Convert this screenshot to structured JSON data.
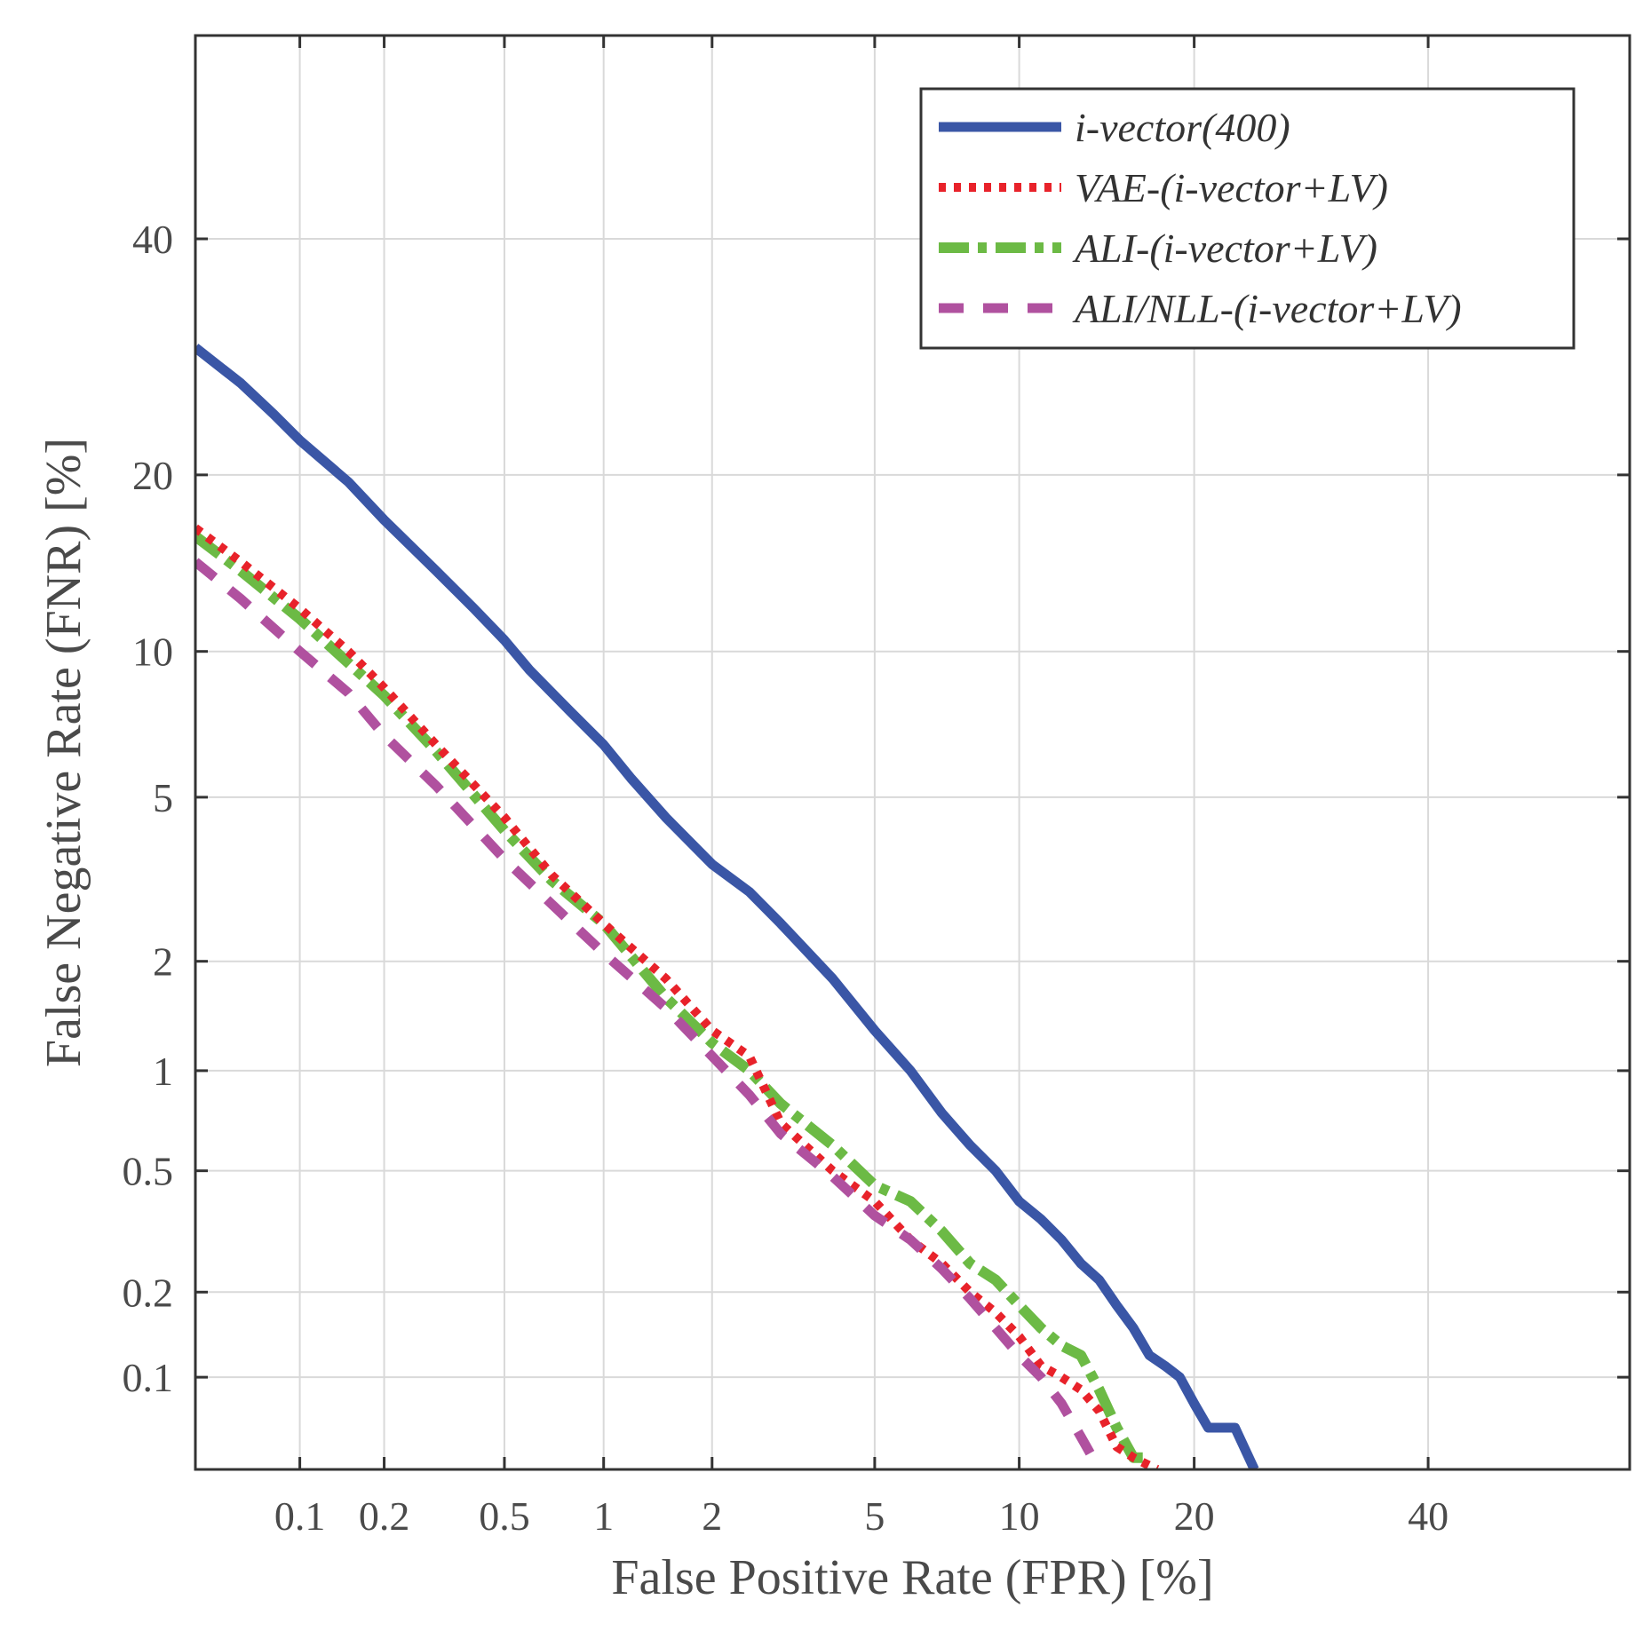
{
  "chart_data": {
    "type": "line",
    "title": "",
    "xlabel": "False Positive Rate (FPR) [%]",
    "ylabel": "False Negative Rate (FNR) [%]",
    "xscale": "probit",
    "yscale": "probit",
    "xlim": [
      0.04,
      60
    ],
    "ylim": [
      0.045,
      60
    ],
    "xticks": [
      0.1,
      0.2,
      0.5,
      1,
      2,
      5,
      10,
      20,
      40
    ],
    "xtick_labels": [
      "0.1",
      "0.2",
      "0.5",
      "1",
      "2",
      "5",
      "10",
      "20",
      "40"
    ],
    "yticks": [
      0.1,
      0.2,
      0.5,
      1,
      2,
      5,
      10,
      20,
      40
    ],
    "ytick_labels": [
      "0.1",
      "0.2",
      "0.5",
      "1",
      "2",
      "5",
      "10",
      "20",
      "40"
    ],
    "grid": true,
    "legend_position": "top-right",
    "series": [
      {
        "name": "i-vector(400)",
        "color": "#3a56a6",
        "style": "solid",
        "x": [
          0.04,
          0.06,
          0.08,
          0.1,
          0.15,
          0.2,
          0.3,
          0.4,
          0.5,
          0.6,
          0.8,
          1,
          1.2,
          1.5,
          2,
          2.5,
          3,
          4,
          5,
          6,
          7,
          8,
          9,
          10,
          11,
          12,
          13,
          14,
          15,
          16,
          17,
          18,
          19,
          20,
          21,
          22,
          23,
          24.5
        ],
        "y": [
          30,
          27,
          24.5,
          22.5,
          19.5,
          17,
          14,
          12,
          10.5,
          9.2,
          7.6,
          6.5,
          5.5,
          4.5,
          3.5,
          3,
          2.5,
          1.8,
          1.3,
          1.0,
          0.75,
          0.6,
          0.5,
          0.4,
          0.35,
          0.3,
          0.25,
          0.22,
          0.18,
          0.15,
          0.12,
          0.11,
          0.1,
          0.08,
          0.065,
          0.065,
          0.065,
          0.045
        ]
      },
      {
        "name": "VAE-(i-vector+LV)",
        "color": "#e8222a",
        "style": "dotted",
        "x": [
          0.04,
          0.06,
          0.1,
          0.15,
          0.2,
          0.3,
          0.5,
          0.7,
          1,
          1.5,
          2,
          2.5,
          3,
          4,
          5,
          6,
          7,
          8,
          9,
          10,
          11,
          12,
          13,
          14,
          15,
          16,
          17.5
        ],
        "y": [
          16.5,
          14.5,
          12,
          10,
          8.5,
          6.5,
          4.5,
          3.3,
          2.5,
          1.8,
          1.3,
          1.1,
          0.7,
          0.5,
          0.4,
          0.3,
          0.25,
          0.2,
          0.17,
          0.14,
          0.11,
          0.1,
          0.09,
          0.075,
          0.055,
          0.05,
          0.045
        ]
      },
      {
        "name": "ALI-(i-vector+LV)",
        "color": "#6cba45",
        "style": "dash-dot",
        "x": [
          0.04,
          0.06,
          0.1,
          0.15,
          0.2,
          0.3,
          0.5,
          0.7,
          1,
          1.5,
          2,
          2.5,
          3,
          4,
          5,
          6,
          7,
          8,
          9,
          10,
          11,
          12,
          13,
          14,
          15,
          16,
          17
        ],
        "y": [
          16,
          14,
          11.5,
          9.5,
          8.2,
          6.3,
          4.2,
          3.2,
          2.5,
          1.6,
          1.2,
          1.0,
          0.8,
          0.6,
          0.45,
          0.4,
          0.32,
          0.25,
          0.22,
          0.18,
          0.15,
          0.13,
          0.12,
          0.09,
          0.065,
          0.05,
          0.05
        ]
      },
      {
        "name": "ALI/NLL-(i-vector+LV)",
        "color": "#b0519f",
        "style": "dashed",
        "x": [
          0.04,
          0.06,
          0.1,
          0.15,
          0.2,
          0.3,
          0.5,
          0.7,
          1,
          1.5,
          2,
          2.5,
          3,
          4,
          5,
          6,
          7,
          8,
          9,
          10,
          11,
          12,
          13,
          14
        ],
        "y": [
          14.5,
          12.5,
          10,
          8.3,
          6.8,
          5.3,
          3.6,
          2.8,
          2.1,
          1.5,
          1.1,
          0.85,
          0.65,
          0.48,
          0.36,
          0.3,
          0.24,
          0.19,
          0.15,
          0.12,
          0.1,
          0.08,
          0.06,
          0.045
        ]
      }
    ]
  }
}
